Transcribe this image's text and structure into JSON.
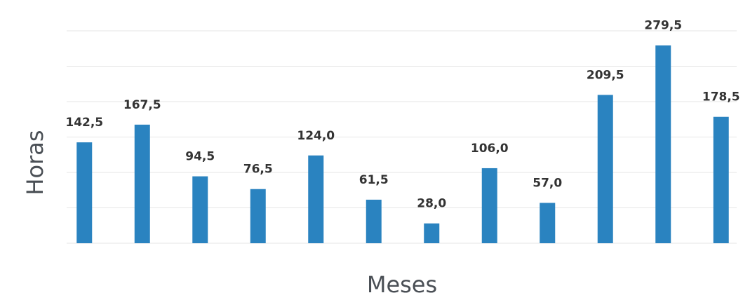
{
  "chart_data": {
    "type": "bar",
    "categories": [
      null,
      null,
      null,
      null,
      null,
      null,
      null,
      null,
      null,
      null,
      null,
      null
    ],
    "values": [
      142.5,
      167.5,
      94.5,
      76.5,
      124.0,
      61.5,
      28.0,
      106.0,
      57.0,
      209.5,
      279.5,
      178.5
    ],
    "value_labels": [
      "142,5",
      "167,5",
      "94,5",
      "76,5",
      "124,0",
      "61,5",
      "28,0",
      "106,0",
      "57,0",
      "209,5",
      "279,5",
      "178,5"
    ],
    "color": "#2a83c0",
    "ylabel": "Horas",
    "xlabel": "Meses",
    "ylim": [
      0,
      300
    ],
    "yticks": [
      0,
      50,
      100,
      150,
      200,
      250,
      300
    ],
    "grid": true
  }
}
